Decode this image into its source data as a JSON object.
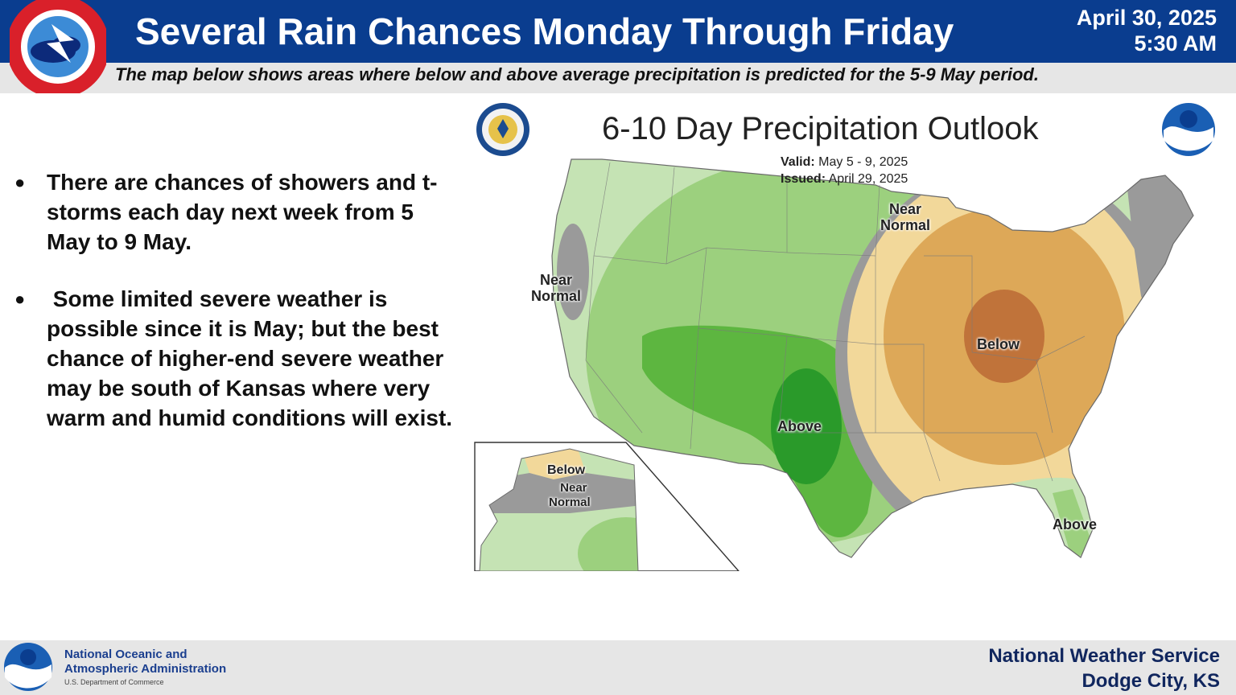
{
  "header": {
    "title": "Several Rain Chances Monday Through Friday",
    "date": "April 30, 2025",
    "time": "5:30 AM",
    "subtitle": "The map below shows areas where below and above average precipitation is predicted for the 5-9 May period."
  },
  "bullets": [
    "There are chances of showers and t-storms each day next week from 5 May to 9 May.",
    " Some limited severe weather is possible since it is May; but the best chance of higher-end severe weather may be south of Kansas where very warm and humid conditions will exist."
  ],
  "map": {
    "title": "6-10 Day Precipitation Outlook",
    "valid_label": "Valid:",
    "valid_value": "May 5 - 9, 2025",
    "issued_label": "Issued:",
    "issued_value": "April 29, 2025",
    "labels": {
      "near_normal_west_1": "Near",
      "near_normal_west_2": "Normal",
      "near_normal_north_1": "Near",
      "near_normal_north_2": "Normal",
      "below_midwest": "Below",
      "above_plains": "Above",
      "above_florida": "Above",
      "alaska_below": "Below",
      "alaska_near_1": "Near",
      "alaska_near_2": "Normal"
    },
    "colors": {
      "above_light": "#c5e3b4",
      "above_mid": "#9cd07e",
      "above_strong": "#5db640",
      "above_darkest": "#2a9a2a",
      "near_normal": "#9a9a9a",
      "below_light": "#f2d89a",
      "below_mid": "#dda858",
      "below_strong": "#c0733a"
    }
  },
  "footer": {
    "agency_line1": "National Oceanic and",
    "agency_line2": "Atmospheric Administration",
    "department": "U.S. Department of Commerce",
    "office_line1": "National Weather Service",
    "office_line2": "Dodge City, KS"
  }
}
